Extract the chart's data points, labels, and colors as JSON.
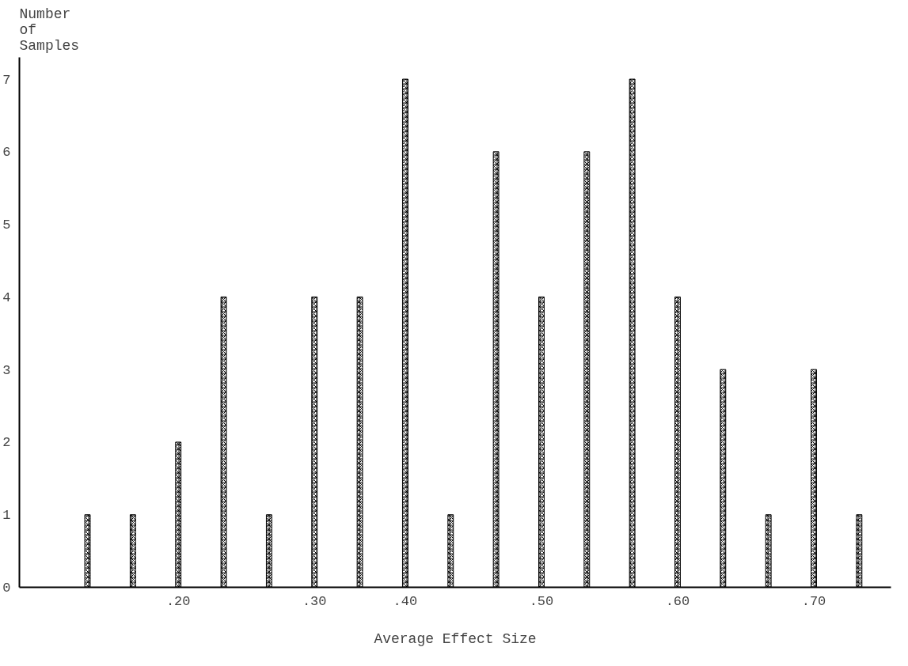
{
  "chart_data": {
    "type": "bar",
    "xlabel": "Average Effect Size",
    "ylabel": "Number of Samples",
    "categories": [
      null,
      null,
      ".20",
      null,
      null,
      ".30",
      null,
      ".40",
      null,
      null,
      ".50",
      null,
      null,
      ".60",
      null,
      null,
      ".70",
      null
    ],
    "values": [
      1,
      1,
      2,
      4,
      1,
      4,
      4,
      7,
      1,
      6,
      4,
      6,
      7,
      4,
      3,
      1,
      3,
      1
    ],
    "color": "#000000",
    "ylim": [
      0,
      7.3
    ],
    "yticks": [
      0,
      1,
      2,
      3,
      4,
      5,
      6,
      7
    ],
    "grid": false
  }
}
